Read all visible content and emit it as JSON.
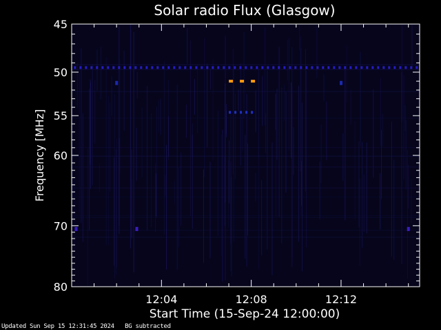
{
  "chart_data": {
    "type": "heatmap",
    "title": "Solar radio Flux (Glasgow)",
    "xlabel": "Start Time (15-Sep-24 12:00:00)",
    "ylabel": "Frequency [MHz]",
    "xlim_minutes": [
      0,
      15.5
    ],
    "ylim_mhz": [
      45,
      80
    ],
    "y_scale": "log",
    "x_ticks": [
      {
        "minutes": 4,
        "label": "12:04"
      },
      {
        "minutes": 8,
        "label": "12:08"
      },
      {
        "minutes": 12,
        "label": "12:12"
      }
    ],
    "y_ticks": [
      {
        "mhz": 45,
        "label": "45"
      },
      {
        "mhz": 50,
        "label": "50"
      },
      {
        "mhz": 55,
        "label": "55"
      },
      {
        "mhz": 60,
        "label": "60"
      },
      {
        "mhz": 70,
        "label": "70"
      },
      {
        "mhz": 80,
        "label": "80"
      }
    ],
    "background_color": "#06051c",
    "features": [
      {
        "name": "",
        "type": "dashed-band",
        "mhz": 49.5,
        "x_start": 0.1,
        "x_end": 15.4,
        "color": "#2a1fd6",
        "intensity": 0.55
      },
      {
        "name": "",
        "type": "dashed-band",
        "mhz": 51.0,
        "x_start": 7.0,
        "x_end": 8.2,
        "color": "#ff9a10",
        "intensity": 1.0
      },
      {
        "name": "",
        "type": "dashed-band",
        "mhz": 54.6,
        "x_start": 7.0,
        "x_end": 8.2,
        "color": "#2233cc",
        "intensity": 0.6
      },
      {
        "name": "",
        "type": "blip",
        "mhz": 51.2,
        "minutes": 2.0,
        "color": "#2030c8",
        "intensity": 0.5
      },
      {
        "name": "",
        "type": "blip",
        "mhz": 51.2,
        "minutes": 12.0,
        "color": "#2030c8",
        "intensity": 0.5
      },
      {
        "name": "",
        "type": "blip",
        "mhz": 70.5,
        "minutes": 0.2,
        "color": "#4020d0",
        "intensity": 0.55
      },
      {
        "name": "",
        "type": "blip",
        "mhz": 70.5,
        "minutes": 2.9,
        "color": "#4020d0",
        "intensity": 0.55
      },
      {
        "name": "",
        "type": "blip",
        "mhz": 70.5,
        "minutes": 15.0,
        "color": "#4020d0",
        "intensity": 0.55
      }
    ]
  },
  "footer": {
    "updated": "Updated Sun Sep 15 12:31:45 2024",
    "note": "BG subtracted"
  }
}
